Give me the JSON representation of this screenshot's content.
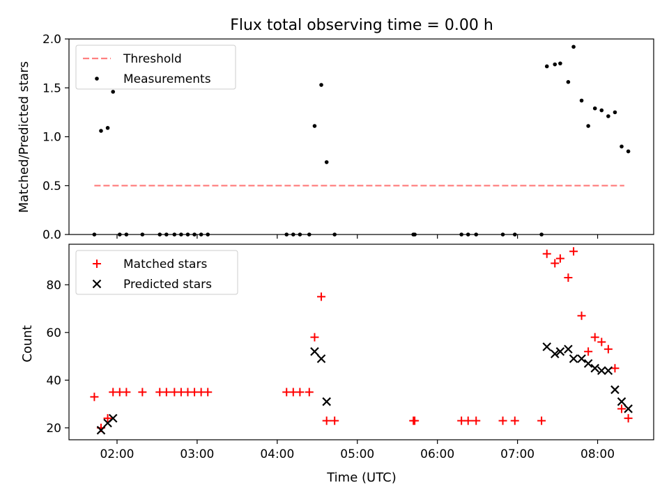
{
  "figure": {
    "title": "Flux total observing time = 0.00 h"
  },
  "chart_data": [
    {
      "type": "scatter",
      "panel": "top",
      "title": "Flux total observing time = 0.00 h",
      "xlabel": "",
      "ylabel": "Matched/Predicted stars",
      "xlim": [
        "01:24",
        "08:42"
      ],
      "ylim": [
        0,
        2.0
      ],
      "xticks": [
        "02:00",
        "03:00",
        "04:00",
        "05:00",
        "06:00",
        "07:00",
        "08:00"
      ],
      "xtick_labels_shown": false,
      "yticks": [
        0.0,
        0.5,
        1.0,
        1.5,
        2.0
      ],
      "ytick_labels": [
        "0.0",
        "0.5",
        "1.0",
        "1.5",
        "2.0"
      ],
      "grid": false,
      "legend": {
        "position": "top-left",
        "entries": [
          "Threshold",
          "Measurements"
        ]
      },
      "series": [
        {
          "name": "Threshold",
          "style": "dashed-line",
          "color": "#ff8080",
          "x": [
            "01:43",
            "08:20"
          ],
          "y": [
            0.5,
            0.5
          ]
        },
        {
          "name": "Measurements",
          "style": "dot",
          "color": "#000000",
          "x": [
            "01:43",
            "01:48",
            "01:53",
            "01:57",
            "02:02",
            "02:07",
            "02:19",
            "02:32",
            "02:37",
            "02:43",
            "02:48",
            "02:53",
            "02:58",
            "03:03",
            "03:08",
            "04:07",
            "04:12",
            "04:17",
            "04:24",
            "04:28",
            "04:33",
            "04:37",
            "04:43",
            "05:42",
            "05:43",
            "06:18",
            "06:23",
            "06:29",
            "06:49",
            "06:58",
            "07:18",
            "07:22",
            "07:28",
            "07:32",
            "07:38",
            "07:42",
            "07:48",
            "07:53",
            "07:58",
            "08:03",
            "08:08",
            "08:13",
            "08:18",
            "08:23"
          ],
          "y": [
            0.0,
            1.06,
            1.09,
            1.46,
            0.0,
            0.0,
            0.0,
            0.0,
            0.0,
            0.0,
            0.0,
            0.0,
            0.0,
            0.0,
            0.0,
            0.0,
            0.0,
            0.0,
            0.0,
            1.11,
            1.53,
            0.74,
            0.0,
            0.0,
            0.0,
            0.0,
            0.0,
            0.0,
            0.0,
            0.0,
            0.0,
            1.72,
            1.74,
            1.75,
            1.56,
            1.92,
            1.37,
            1.11,
            1.29,
            1.27,
            1.21,
            1.25,
            0.9,
            0.85
          ]
        }
      ]
    },
    {
      "type": "scatter",
      "panel": "bottom",
      "title": "",
      "xlabel": "Time (UTC)",
      "ylabel": "Count",
      "xlim": [
        "01:24",
        "08:42"
      ],
      "ylim": [
        15,
        97
      ],
      "xticks": [
        "02:00",
        "03:00",
        "04:00",
        "05:00",
        "06:00",
        "07:00",
        "08:00"
      ],
      "xtick_labels": [
        "02:00",
        "03:00",
        "04:00",
        "05:00",
        "06:00",
        "07:00",
        "08:00"
      ],
      "yticks": [
        20,
        40,
        60,
        80
      ],
      "ytick_labels": [
        "20",
        "40",
        "60",
        "80"
      ],
      "grid": false,
      "legend": {
        "position": "top-left",
        "entries": [
          "Matched stars",
          "Predicted stars"
        ]
      },
      "series": [
        {
          "name": "Matched stars",
          "marker": "plus",
          "color": "#ff0000",
          "x": [
            "01:43",
            "01:48",
            "01:53",
            "01:57",
            "02:02",
            "02:07",
            "02:19",
            "02:32",
            "02:37",
            "02:43",
            "02:48",
            "02:53",
            "02:58",
            "03:03",
            "03:08",
            "04:07",
            "04:12",
            "04:17",
            "04:24",
            "04:28",
            "04:33",
            "04:37",
            "04:43",
            "05:42",
            "05:43",
            "06:18",
            "06:23",
            "06:29",
            "06:49",
            "06:58",
            "07:18",
            "07:22",
            "07:28",
            "07:32",
            "07:38",
            "07:42",
            "07:48",
            "07:53",
            "07:58",
            "08:03",
            "08:08",
            "08:13",
            "08:18",
            "08:23"
          ],
          "y": [
            33,
            20,
            24,
            35,
            35,
            35,
            35,
            35,
            35,
            35,
            35,
            35,
            35,
            35,
            35,
            35,
            35,
            35,
            35,
            58,
            75,
            23,
            23,
            23,
            23,
            23,
            23,
            23,
            23,
            23,
            23,
            93,
            89,
            91,
            83,
            94,
            67,
            52,
            58,
            56,
            53,
            45,
            28,
            24
          ]
        },
        {
          "name": "Predicted stars",
          "marker": "x",
          "color": "#000000",
          "x": [
            "01:48",
            "01:53",
            "01:57",
            "04:28",
            "04:33",
            "04:37",
            "07:22",
            "07:28",
            "07:32",
            "07:38",
            "07:42",
            "07:48",
            "07:53",
            "07:58",
            "08:03",
            "08:08",
            "08:13",
            "08:18",
            "08:23"
          ],
          "y": [
            19,
            22,
            24,
            52,
            49,
            31,
            54,
            51,
            52,
            53,
            49,
            49,
            47,
            45,
            44,
            44,
            36,
            31,
            28
          ]
        }
      ]
    }
  ]
}
